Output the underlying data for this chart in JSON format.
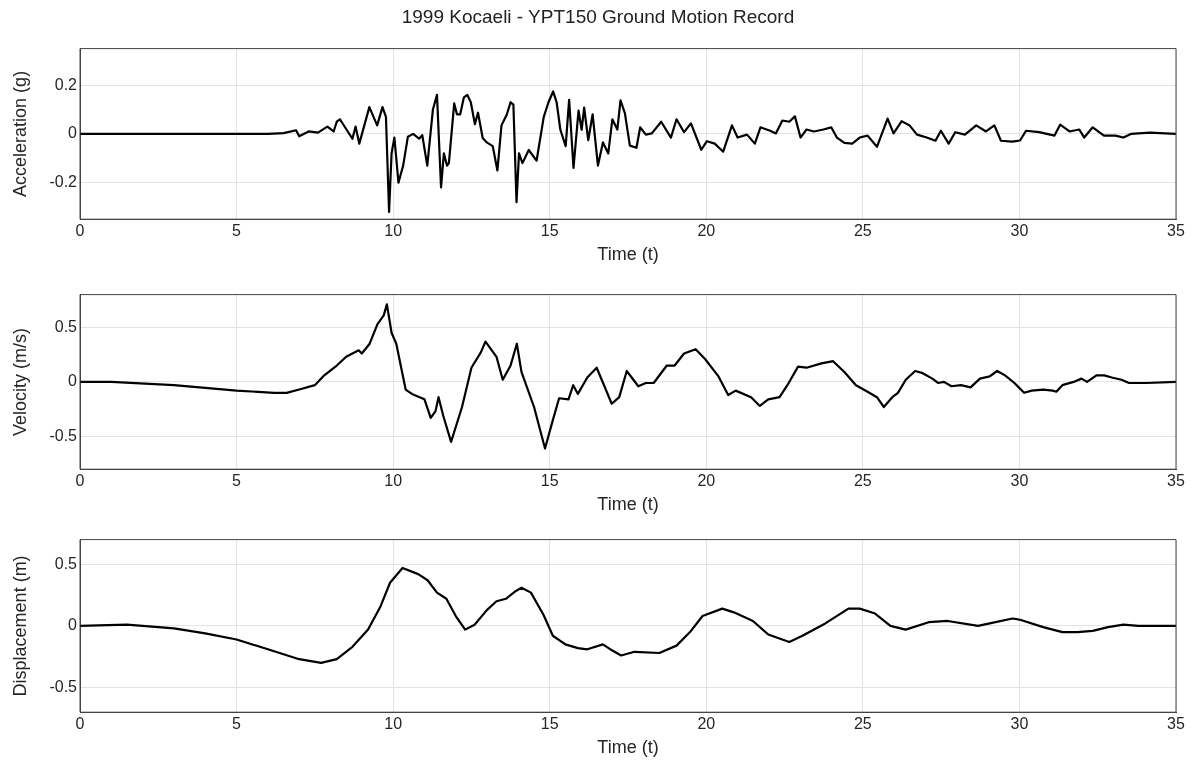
{
  "chart_data": [
    {
      "type": "line",
      "title": "1999 Kocaeli - YPT150 Ground Motion Record",
      "xlabel": "Time (t)",
      "ylabel": "Acceleration (g)",
      "color": "#000000",
      "xlim": [
        0,
        35
      ],
      "xticks": [
        0,
        5,
        10,
        15,
        20,
        25,
        30,
        35
      ],
      "ylim": [
        -0.35,
        0.35
      ],
      "yticks": [
        -0.2,
        0,
        0.2
      ],
      "grid": true,
      "x": [
        0,
        5,
        6,
        6.5,
        6.9,
        7.0,
        7.3,
        7.6,
        7.9,
        8.1,
        8.2,
        8.3,
        8.5,
        8.7,
        8.8,
        8.92,
        9.24,
        9.49,
        9.66,
        9.77,
        9.87,
        9.95,
        10.04,
        10.17,
        10.32,
        10.47,
        10.64,
        10.83,
        10.93,
        11.09,
        11.27,
        11.4,
        11.53,
        11.62,
        11.72,
        11.78,
        11.95,
        12.04,
        12.14,
        12.26,
        12.37,
        12.48,
        12.61,
        12.71,
        12.86,
        12.99,
        13.18,
        13.33,
        13.46,
        13.63,
        13.75,
        13.84,
        13.94,
        14.02,
        14.13,
        14.33,
        14.58,
        14.81,
        14.96,
        15.11,
        15.22,
        15.34,
        15.51,
        15.62,
        15.76,
        15.92,
        16.02,
        16.1,
        16.23,
        16.37,
        16.54,
        16.7,
        16.87,
        17.0,
        17.16,
        17.26,
        17.4,
        17.56,
        17.77,
        17.89,
        18.07,
        18.26,
        18.56,
        18.87,
        19.05,
        19.29,
        19.51,
        19.84,
        20.02,
        20.27,
        20.54,
        20.82,
        21.0,
        21.3,
        21.55,
        21.73,
        22.04,
        22.22,
        22.43,
        22.65,
        22.83,
        23.01,
        23.2,
        23.44,
        23.74,
        23.99,
        24.17,
        24.41,
        24.66,
        24.9,
        25.15,
        25.45,
        25.79,
        25.98,
        26.24,
        26.49,
        26.73,
        27.04,
        27.32,
        27.49,
        27.74,
        27.95,
        28.26,
        28.62,
        28.93,
        29.2,
        29.41,
        29.76,
        30.02,
        30.21,
        30.63,
        31.12,
        31.3,
        31.6,
        31.91,
        32.07,
        32.34,
        32.7,
        33.07,
        33.32,
        33.56,
        34.17,
        35
      ],
      "values": [
        0,
        0,
        0,
        0.003,
        0.015,
        -0.01,
        0.01,
        0.005,
        0.03,
        0.01,
        0.05,
        0.06,
        0.02,
        -0.02,
        0.03,
        -0.04,
        0.11,
        0.035,
        0.11,
        0.07,
        -0.32,
        -0.08,
        -0.015,
        -0.2,
        -0.13,
        -0.012,
        0,
        -0.02,
        -0.005,
        -0.13,
        0.1,
        0.16,
        -0.22,
        -0.08,
        -0.13,
        -0.12,
        0.125,
        0.08,
        0.08,
        0.15,
        0.16,
        0.13,
        0.04,
        0.087,
        -0.017,
        -0.035,
        -0.05,
        -0.15,
        0.035,
        0.08,
        0.13,
        0.12,
        -0.28,
        -0.08,
        -0.12,
        -0.066,
        -0.11,
        0.07,
        0.13,
        0.174,
        0.13,
        0.017,
        -0.05,
        0.14,
        -0.14,
        0.096,
        0.017,
        0.108,
        -0.026,
        0.08,
        -0.13,
        -0.035,
        -0.08,
        0.06,
        0.018,
        0.138,
        0.085,
        -0.048,
        -0.057,
        0.027,
        -0.003,
        0.002,
        0.05,
        -0.015,
        0.06,
        0.007,
        0.043,
        -0.065,
        -0.03,
        -0.04,
        -0.073,
        0.035,
        -0.015,
        -0.003,
        -0.04,
        0.027,
        0.013,
        0.002,
        0.055,
        0.05,
        0.072,
        -0.015,
        0.018,
        0.01,
        0.018,
        0.027,
        -0.015,
        -0.037,
        -0.04,
        -0.015,
        -0.007,
        -0.053,
        0.063,
        0.002,
        0.052,
        0.035,
        -0.003,
        -0.015,
        -0.028,
        0.013,
        -0.04,
        0.007,
        -0.003,
        0.035,
        0.01,
        0.035,
        -0.028,
        -0.032,
        -0.027,
        0.013,
        0.007,
        -0.007,
        0.038,
        0.01,
        0.018,
        -0.015,
        0.027,
        -0.007,
        -0.007,
        -0.015,
        0,
        0.005,
        0
      ]
    },
    {
      "type": "line",
      "xlabel": "Time (t)",
      "ylabel": "Velocity (m/s)",
      "color": "#000000",
      "xlim": [
        0,
        35
      ],
      "xticks": [
        0,
        5,
        10,
        15,
        20,
        25,
        30,
        35
      ],
      "ylim": [
        -0.8,
        0.8
      ],
      "yticks": [
        -0.5,
        0,
        0.5
      ],
      "grid": true,
      "x": [
        0,
        1,
        3,
        5,
        6.2,
        6.6,
        7,
        7.5,
        7.8,
        8.2,
        8.5,
        8.9,
        9.0,
        9.25,
        9.5,
        9.7,
        9.8,
        9.95,
        10.1,
        10.4,
        10.6,
        11.0,
        11.2,
        11.35,
        11.45,
        11.6,
        11.85,
        12.2,
        12.5,
        12.8,
        12.95,
        13.3,
        13.5,
        13.75,
        13.95,
        14.1,
        14.5,
        14.85,
        15.1,
        15.3,
        15.6,
        15.75,
        15.9,
        16.2,
        16.5,
        16.98,
        17.22,
        17.46,
        17.83,
        18.07,
        18.32,
        18.74,
        18.99,
        19.29,
        19.66,
        19.96,
        20.39,
        20.7,
        20.94,
        21.43,
        21.71,
        21.98,
        22.34,
        22.59,
        22.93,
        23.2,
        23.68,
        24.05,
        24.41,
        24.78,
        25.15,
        25.45,
        25.67,
        25.94,
        26.12,
        26.37,
        26.67,
        26.91,
        27.22,
        27.4,
        27.59,
        27.83,
        28.13,
        28.44,
        28.74,
        29.05,
        29.29,
        29.54,
        29.84,
        30.15,
        30.39,
        30.76,
        31.06,
        31.18,
        31.37,
        31.73,
        31.98,
        32.16,
        32.46,
        32.71,
        32.95,
        33.26,
        33.5,
        34.05,
        35
      ],
      "values": [
        0,
        0,
        -0.03,
        -0.08,
        -0.1,
        -0.1,
        -0.07,
        -0.03,
        0.06,
        0.15,
        0.23,
        0.29,
        0.26,
        0.35,
        0.53,
        0.61,
        0.71,
        0.45,
        0.35,
        -0.07,
        -0.11,
        -0.16,
        -0.33,
        -0.27,
        -0.14,
        -0.31,
        -0.55,
        -0.23,
        0.13,
        0.27,
        0.37,
        0.23,
        0.02,
        0.15,
        0.35,
        0.09,
        -0.23,
        -0.61,
        -0.35,
        -0.15,
        -0.16,
        -0.03,
        -0.11,
        0.04,
        0.13,
        -0.2,
        -0.14,
        0.1,
        -0.04,
        -0.01,
        -0.01,
        0.15,
        0.15,
        0.26,
        0.3,
        0.21,
        0.05,
        -0.12,
        -0.08,
        -0.14,
        -0.22,
        -0.16,
        -0.14,
        -0.03,
        0.14,
        0.13,
        0.17,
        0.19,
        0.09,
        -0.03,
        -0.09,
        -0.14,
        -0.23,
        -0.14,
        -0.1,
        0.02,
        0.1,
        0.08,
        0.03,
        -0.01,
        0,
        -0.04,
        -0.03,
        -0.05,
        0.03,
        0.05,
        0.1,
        0.06,
        -0.01,
        -0.1,
        -0.08,
        -0.07,
        -0.08,
        -0.09,
        -0.03,
        0,
        0.03,
        0,
        0.06,
        0.06,
        0.04,
        0.02,
        -0.01,
        -0.01,
        0
      ]
    },
    {
      "type": "line",
      "xlabel": "Time (t)",
      "ylabel": "Displacement (m)",
      "color": "#000000",
      "xlim": [
        0,
        35
      ],
      "xticks": [
        0,
        5,
        10,
        15,
        20,
        25,
        30,
        35
      ],
      "ylim": [
        -0.7,
        0.7
      ],
      "yticks": [
        -0.5,
        0,
        0.5
      ],
      "grid": true,
      "x": [
        0,
        1.5,
        3,
        4,
        5,
        6,
        7,
        7.7,
        8.2,
        8.7,
        9.2,
        9.6,
        9.9,
        10.3,
        10.8,
        11.1,
        11.4,
        11.7,
        12.0,
        12.3,
        12.6,
        13.0,
        13.3,
        13.6,
        13.9,
        14.1,
        14.4,
        14.8,
        15.1,
        15.5,
        15.9,
        16.2,
        16.7,
        17.0,
        17.28,
        17.71,
        18.5,
        19.05,
        19.48,
        19.88,
        20.51,
        20.88,
        21.49,
        21.98,
        22.65,
        23.07,
        23.8,
        24.54,
        24.9,
        25.39,
        25.88,
        26.37,
        27.1,
        27.71,
        28.68,
        29.05,
        29.78,
        30.02,
        30.76,
        31.37,
        31.85,
        32.34,
        32.83,
        33.32,
        33.8,
        35
      ],
      "values": [
        0,
        0.01,
        -0.02,
        -0.06,
        -0.11,
        -0.19,
        -0.27,
        -0.3,
        -0.27,
        -0.17,
        -0.03,
        0.16,
        0.35,
        0.47,
        0.42,
        0.37,
        0.27,
        0.22,
        0.08,
        -0.03,
        0.01,
        0.13,
        0.2,
        0.22,
        0.28,
        0.31,
        0.27,
        0.09,
        -0.08,
        -0.15,
        -0.18,
        -0.19,
        -0.15,
        -0.2,
        -0.24,
        -0.21,
        -0.22,
        -0.16,
        -0.05,
        0.08,
        0.14,
        0.11,
        0.04,
        -0.07,
        -0.13,
        -0.08,
        0.02,
        0.14,
        0.14,
        0.1,
        0,
        -0.03,
        0.03,
        0.04,
        0,
        0.02,
        0.06,
        0.05,
        -0.01,
        -0.05,
        -0.05,
        -0.04,
        -0.01,
        0.01,
        0,
        0
      ]
    }
  ]
}
